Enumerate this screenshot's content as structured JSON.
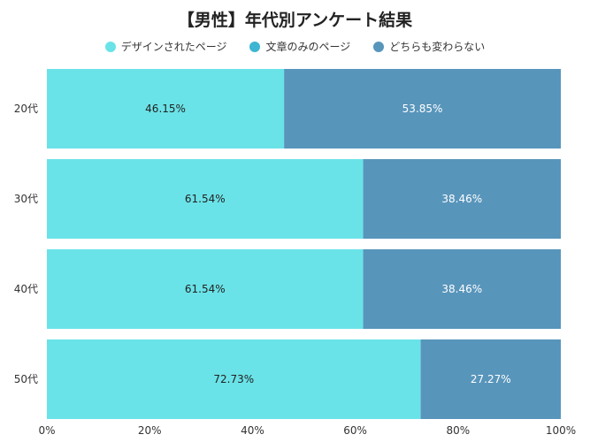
{
  "chart_data": {
    "type": "bar",
    "orientation": "horizontal",
    "stacked": "percent",
    "title": "【男性】年代別アンケート結果",
    "categories": [
      "20代",
      "30代",
      "40代",
      "50代"
    ],
    "series": [
      {
        "name": "デザインされたページ",
        "color": "#6ae3e8",
        "label_color": "#222222",
        "values": [
          46.15,
          61.54,
          61.54,
          72.73
        ]
      },
      {
        "name": "文章のみのページ",
        "color": "#3eb5d2",
        "label_color": "#ffffff",
        "values": [
          0,
          0,
          0,
          0
        ]
      },
      {
        "name": "どちらも変わらない",
        "color": "#5895bb",
        "label_color": "#ffffff",
        "values": [
          53.85,
          38.46,
          38.46,
          27.27
        ]
      }
    ],
    "data_labels": [
      [
        "46.15%",
        "61.54%",
        "61.54%",
        "72.73%"
      ],
      [
        "",
        "",
        "",
        ""
      ],
      [
        "53.85%",
        "38.46%",
        "38.46%",
        "27.27%"
      ]
    ],
    "xlim": [
      0,
      100
    ],
    "x_ticks": [
      "0%",
      "20%",
      "40%",
      "60%",
      "80%",
      "100%"
    ],
    "grid": false,
    "legend_position": "top"
  }
}
